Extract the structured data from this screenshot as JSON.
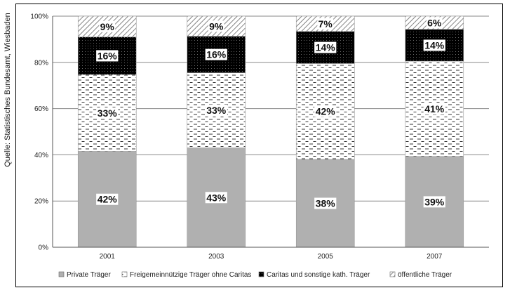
{
  "source_note": "Quelle: Statistisches Bundesamt, Wiesbaden",
  "chart_data": {
    "type": "bar",
    "stacked": true,
    "categories": [
      "2001",
      "2003",
      "2005",
      "2007"
    ],
    "ylim": [
      0,
      100
    ],
    "yticks": [
      "0%",
      "20%",
      "40%",
      "60%",
      "80%",
      "100%"
    ],
    "grid": true,
    "legend_position": "bottom",
    "series": [
      {
        "name": "Private Träger",
        "values": [
          41.5,
          43,
          38,
          39.3
        ],
        "labels": [
          "42%",
          "43%",
          "38%",
          "39%"
        ],
        "pattern": "gray"
      },
      {
        "name": "Freigemeinnützige Träger ohne Caritas",
        "values": [
          33.2,
          32.5,
          41.5,
          41.2
        ],
        "labels": [
          "33%",
          "33%",
          "42%",
          "41%"
        ],
        "pattern": "dashes"
      },
      {
        "name": "Caritas und sonstige kath. Träger",
        "values": [
          16.3,
          15.8,
          13.9,
          13.8
        ],
        "labels": [
          "16%",
          "16%",
          "14%",
          "14%"
        ],
        "pattern": "dots"
      },
      {
        "name": "öffentliche Träger",
        "values": [
          9,
          8.7,
          6.6,
          5.7
        ],
        "labels": [
          "9%",
          "9%",
          "7%",
          "6%"
        ],
        "pattern": "hatch"
      }
    ]
  }
}
